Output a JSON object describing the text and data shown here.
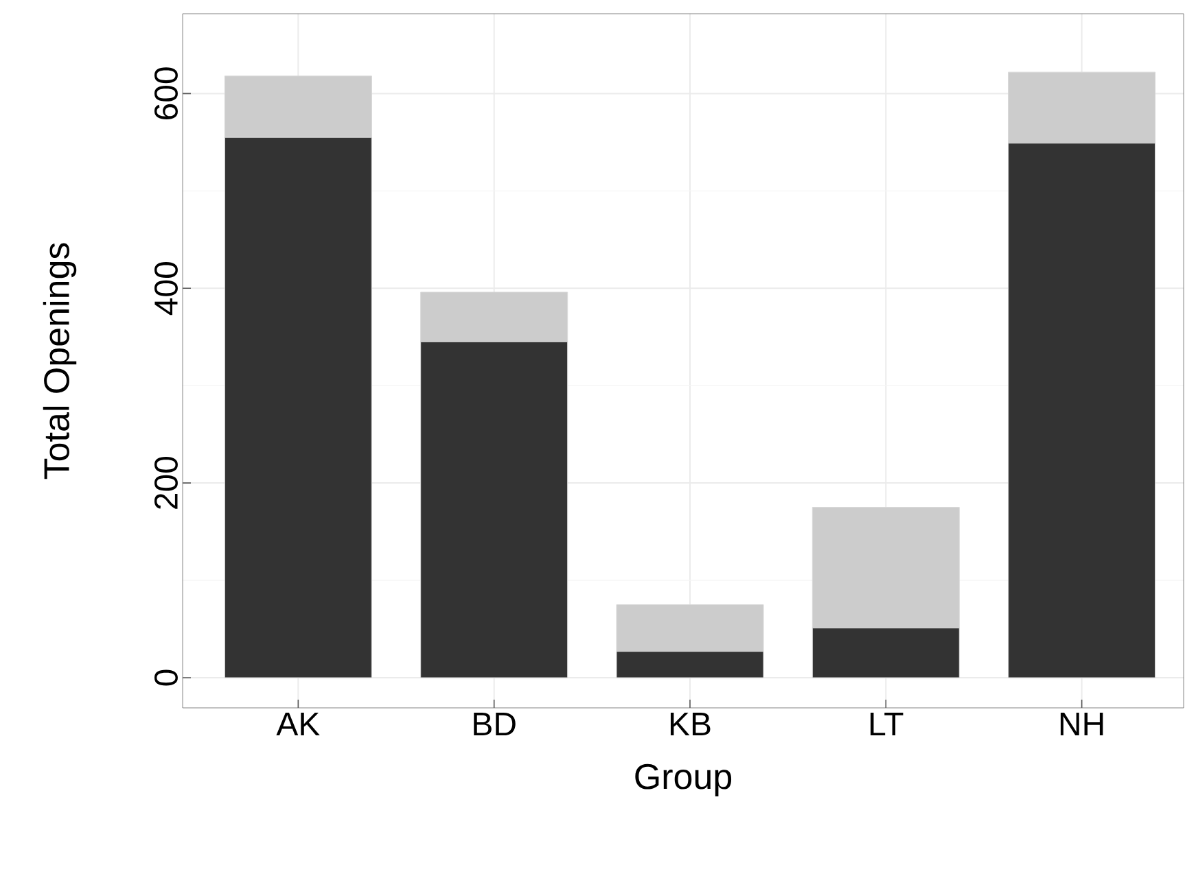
{
  "chart_data": {
    "type": "bar",
    "stacked": true,
    "xlabel": "Group",
    "ylabel": "Total Openings",
    "categories": [
      "AK",
      "BD",
      "KB",
      "LT",
      "NH"
    ],
    "series": [
      {
        "color": "#333333",
        "values": [
          555,
          345,
          27,
          51,
          549
        ]
      },
      {
        "color": "#cccccc",
        "values": [
          63,
          51,
          48,
          124,
          73
        ]
      }
    ],
    "ylim": [
      -31,
      682
    ],
    "yticks": [
      0,
      200,
      400,
      600
    ],
    "grid": true
  }
}
